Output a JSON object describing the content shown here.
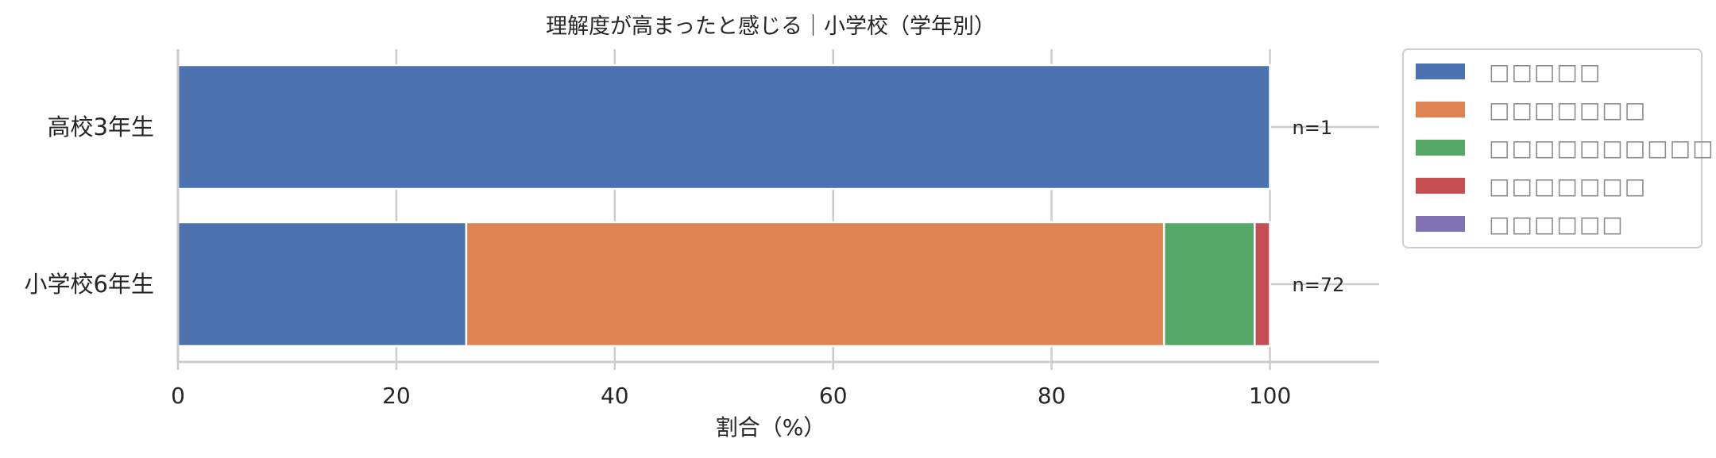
{
  "chart_data": {
    "type": "bar",
    "orientation": "horizontal",
    "stacked": true,
    "title": "理解度が高まったと感じる｜小学校（学年別）",
    "xlabel": "割合（%）",
    "ylabel": "",
    "xlim": [
      0,
      110
    ],
    "x_ticks": [
      0,
      20,
      40,
      60,
      80,
      100
    ],
    "grid": true,
    "legend_position": "right-outside-top",
    "categories": [
      "高校3年生",
      "小学校6年生"
    ],
    "n_labels": [
      "n=1",
      "n=72"
    ],
    "series": [
      {
        "name": "□□□□□",
        "color": "#4c72b0",
        "values": [
          100.0,
          26.4
        ]
      },
      {
        "name": "□□□□□□□",
        "color": "#dd8452",
        "values": [
          0,
          63.9
        ]
      },
      {
        "name": "□□□□□□□□□□□",
        "color": "#55a868",
        "values": [
          0,
          8.3
        ]
      },
      {
        "name": "□□□□□□□",
        "color": "#c44e52",
        "values": [
          0,
          1.4
        ]
      },
      {
        "name": "□□□□□□",
        "color": "#8172b3",
        "values": [
          0,
          0
        ]
      }
    ]
  }
}
